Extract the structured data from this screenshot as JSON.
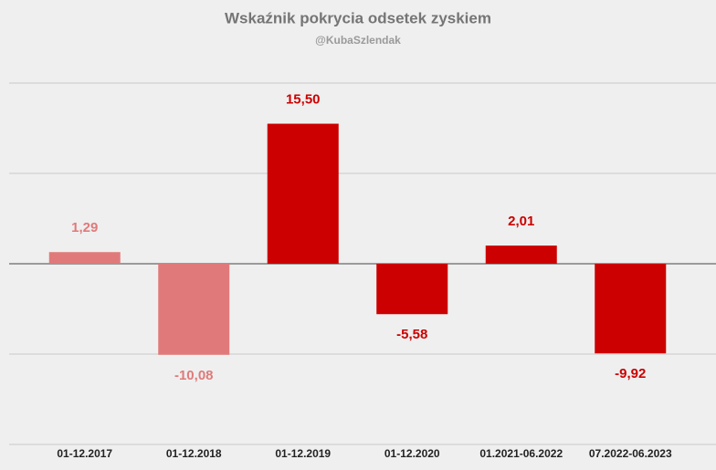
{
  "chart_data": {
    "type": "bar",
    "title": "Wskaźnik pokrycia odsetek zyskiem",
    "subtitle": "@KubaSzlendak",
    "categories": [
      "01-12.2017",
      "01-12.2018",
      "01-12.2019",
      "01-12.2020",
      "01.2021-06.2022",
      "07.2022-06.2023"
    ],
    "values": [
      1.29,
      -10.08,
      15.5,
      -5.58,
      2.01,
      -9.92
    ],
    "value_labels": [
      "1,29",
      "-10,08",
      "15,50",
      "-5,58",
      "2,01",
      "-9,92"
    ],
    "colors": [
      "#e07a7a",
      "#e07a7a",
      "#cc0000",
      "#cc0000",
      "#cc0000",
      "#cc0000"
    ],
    "ylim": [
      -20,
      20
    ],
    "yticks": [
      -20,
      -10,
      0,
      10,
      20
    ],
    "grid": true
  }
}
